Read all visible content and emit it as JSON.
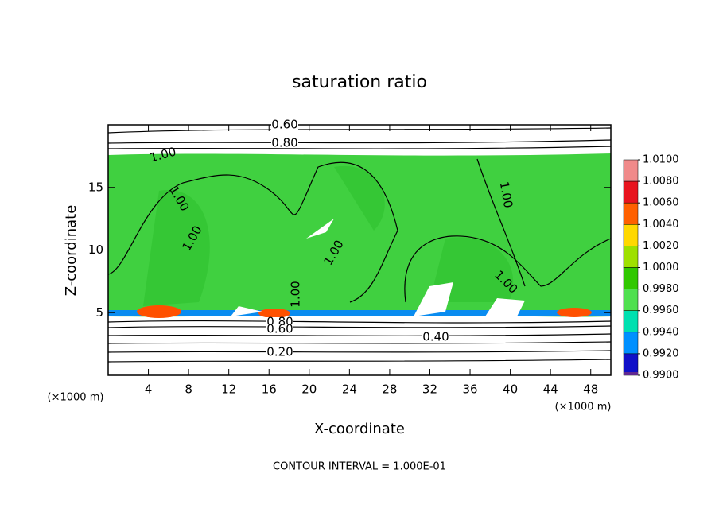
{
  "chart_data": {
    "type": "contour",
    "title": "saturation ratio",
    "x_label": "X-coordinate",
    "y_label": "Z-coordinate",
    "x_unit": "(×1000 m)",
    "footer": "CONTOUR INTERVAL = 1.000E-01",
    "xlim": [
      0,
      50
    ],
    "xticks": [
      4,
      8,
      12,
      16,
      20,
      24,
      28,
      32,
      36,
      40,
      44,
      48
    ],
    "ylim": [
      0,
      20
    ],
    "yticks": [
      5,
      10,
      15
    ],
    "contour_labels": [
      "0.60",
      "0.80",
      "1.00",
      "1.00",
      "1.00",
      "1.00",
      "1.00",
      "1.00",
      "1.00",
      "0.80",
      "0.60",
      "0.40",
      "0.20"
    ],
    "colorbar": {
      "ticks": [
        {
          "value": 1.01,
          "label": "1.0100"
        },
        {
          "value": 1.008,
          "label": "1.0080"
        },
        {
          "value": 1.006,
          "label": "1.0060"
        },
        {
          "value": 1.004,
          "label": "1.0040"
        },
        {
          "value": 1.002,
          "label": "1.0020"
        },
        {
          "value": 1.0,
          "label": "1.0000"
        },
        {
          "value": 0.998,
          "label": "0.9980"
        },
        {
          "value": 0.996,
          "label": "0.9960"
        },
        {
          "value": 0.994,
          "label": "0.9940"
        },
        {
          "value": 0.992,
          "label": "0.9920"
        },
        {
          "value": 0.99,
          "label": "0.9900"
        }
      ],
      "colors": [
        "#f08a8a",
        "#e8141e",
        "#ff6000",
        "#ffd800",
        "#9ee000",
        "#30c800",
        "#50e050",
        "#00e0b0",
        "#0090ff",
        "#1010c8",
        "#602890"
      ]
    }
  }
}
